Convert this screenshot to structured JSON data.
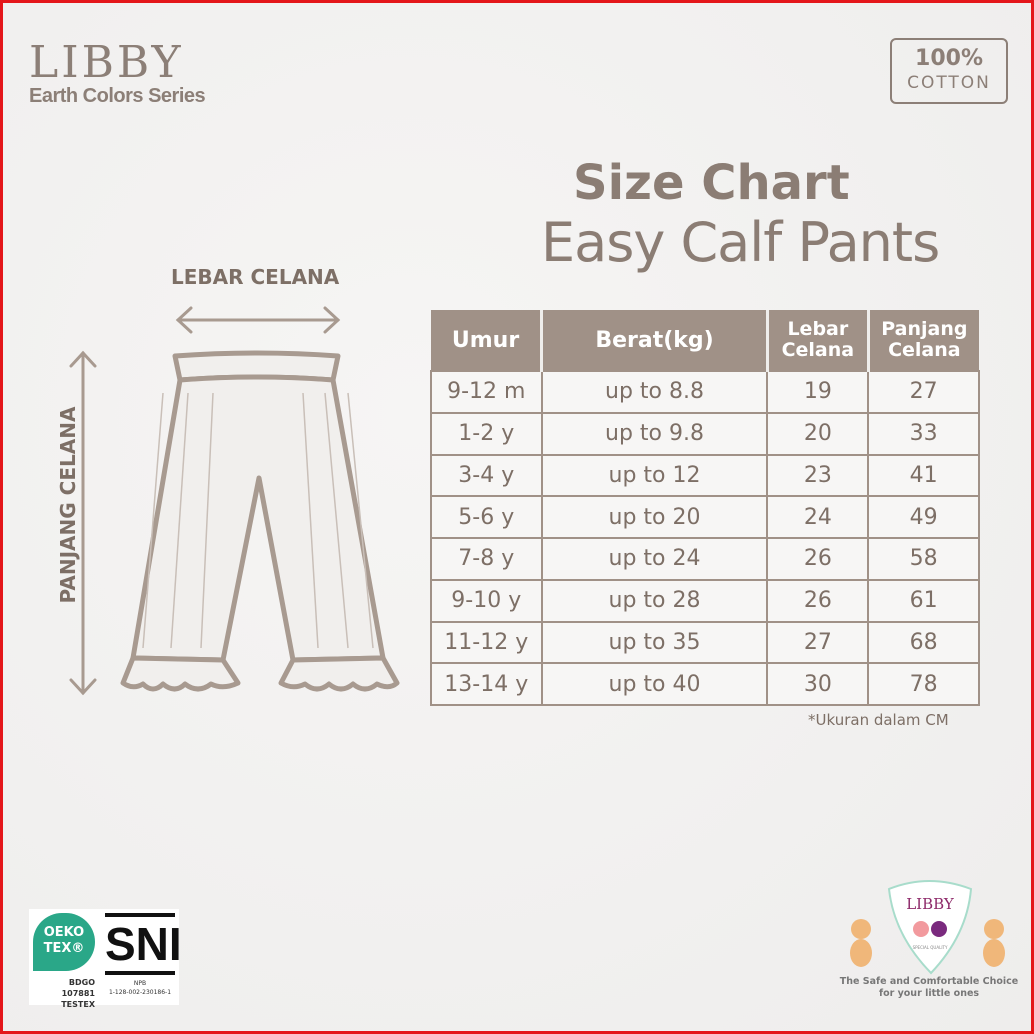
{
  "brand": {
    "name": "LIBBY",
    "series": "Earth Colors Series"
  },
  "badge": {
    "line1": "100%",
    "line2": "COTTON"
  },
  "title": {
    "line1": "Size Chart",
    "line2": "Easy Calf Pants"
  },
  "diagram": {
    "width_label": "LEBAR CELANA",
    "length_label": "PANJANG CELANA"
  },
  "table": {
    "headers": [
      "Umur",
      "Berat(kg)",
      "Lebar Celana",
      "Panjang Celana"
    ],
    "rows": [
      [
        "9-12 m",
        "up to 8.8",
        "19",
        "27"
      ],
      [
        "1-2 y",
        "up to 9.8",
        "20",
        "33"
      ],
      [
        "3-4 y",
        "up to 12",
        "23",
        "41"
      ],
      [
        "5-6 y",
        "up to 20",
        "24",
        "49"
      ],
      [
        "7-8 y",
        "up to 24",
        "26",
        "58"
      ],
      [
        "9-10 y",
        "up to 28",
        "26",
        "61"
      ],
      [
        "11-12 y",
        "up to 35",
        "27",
        "68"
      ],
      [
        "13-14 y",
        "up to 40",
        "30",
        "78"
      ]
    ],
    "note": "*Ukuran dalam CM"
  },
  "certs": {
    "oeko1": "OEKO",
    "oeko2": "TEX®",
    "oeko_code": "BDGO 107881",
    "oeko_org": "TESTEX",
    "sni": "SNI",
    "npb": "NPB",
    "npb_code": "1-128-002-230186-1"
  },
  "libby_logo": {
    "name": "LIBBY",
    "quality": "SPECIAL QUALITY",
    "tagline1": "The Safe and Comfortable Choice",
    "tagline2": "for your little ones"
  },
  "colors": {
    "accent": "#a09187",
    "text": "#8b7d74",
    "frame": "#e4161a"
  }
}
